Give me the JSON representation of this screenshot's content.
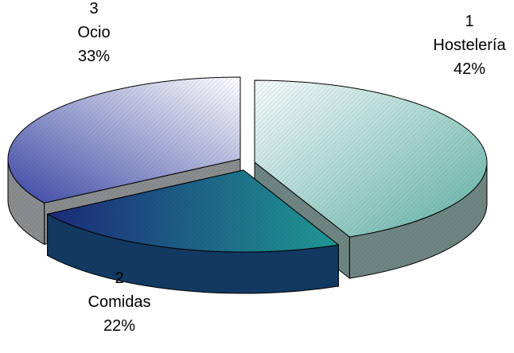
{
  "chart_data": {
    "type": "pie",
    "style": "3d-exploded",
    "slices": [
      {
        "id": "1",
        "name": "Hostelería",
        "value": 42,
        "pct_label": "42%",
        "top_color": "#c9ece6",
        "side_color": "#6f8682"
      },
      {
        "id": "2",
        "name": "Comidas",
        "value": 22,
        "pct_label": "22%",
        "top_color": "#2f8a8c",
        "side_color": "#123a63"
      },
      {
        "id": "3",
        "name": "Ocio",
        "value": 33,
        "pct_label": "33%",
        "top_color": "#7f86c6",
        "side_color": "#8a8d8f"
      }
    ]
  }
}
